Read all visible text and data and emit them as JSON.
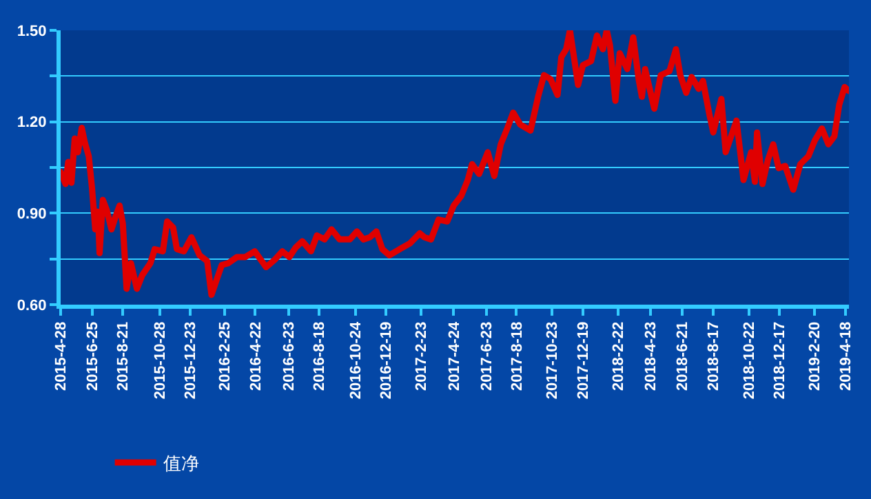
{
  "chart_data": {
    "type": "line",
    "series": [
      {
        "name": "值净",
        "color": "#e00000",
        "x": [
          "2015-04-28",
          "2015-05-07",
          "2015-05-12",
          "2015-05-18",
          "2015-05-24",
          "2015-05-30",
          "2015-06-06",
          "2015-06-12",
          "2015-06-19",
          "2015-06-25",
          "2015-07-01",
          "2015-07-06",
          "2015-07-09",
          "2015-07-15",
          "2015-07-22",
          "2015-07-31",
          "2015-08-07",
          "2015-08-15",
          "2015-08-21",
          "2015-08-28",
          "2015-09-05",
          "2015-09-16",
          "2015-09-26",
          "2015-10-11",
          "2015-10-19",
          "2015-11-03",
          "2015-11-11",
          "2015-11-22",
          "2015-11-29",
          "2015-12-12",
          "2015-12-26",
          "2016-01-10",
          "2016-01-24",
          "2016-02-01",
          "2016-02-11",
          "2016-02-20",
          "2016-03-03",
          "2016-03-19",
          "2016-04-03",
          "2016-04-21",
          "2016-05-12",
          "2016-05-29",
          "2016-06-11",
          "2016-06-24",
          "2016-07-06",
          "2016-07-18",
          "2016-08-03",
          "2016-08-14",
          "2016-08-28",
          "2016-09-10",
          "2016-09-25",
          "2016-10-14",
          "2016-10-27",
          "2016-11-08",
          "2016-11-20",
          "2016-12-02",
          "2016-12-13",
          "2016-12-26",
          "2017-01-14",
          "2017-02-02",
          "2017-02-20",
          "2017-03-01",
          "2017-03-13",
          "2017-03-27",
          "2017-04-12",
          "2017-04-24",
          "2017-05-08",
          "2017-05-20",
          "2017-05-28",
          "2017-06-10",
          "2017-06-26",
          "2017-07-08",
          "2017-07-20",
          "2017-08-01",
          "2017-08-12",
          "2017-08-25",
          "2017-09-13",
          "2017-09-27",
          "2017-10-08",
          "2017-10-20",
          "2017-11-02",
          "2017-11-09",
          "2017-11-18",
          "2017-11-25",
          "2017-12-10",
          "2017-12-19",
          "2018-01-03",
          "2018-01-14",
          "2018-01-25",
          "2018-02-01",
          "2018-02-07",
          "2018-02-17",
          "2018-02-25",
          "2018-03-11",
          "2018-03-22",
          "2018-04-01",
          "2018-04-07",
          "2018-04-13",
          "2018-04-30",
          "2018-05-12",
          "2018-05-28",
          "2018-06-09",
          "2018-06-17",
          "2018-06-28",
          "2018-07-08",
          "2018-07-21",
          "2018-07-29",
          "2018-08-10",
          "2018-08-17",
          "2018-09-01",
          "2018-09-09",
          "2018-09-29",
          "2018-10-12",
          "2018-10-26",
          "2018-11-02",
          "2018-11-06",
          "2018-11-16",
          "2018-11-26",
          "2018-12-06",
          "2018-12-16",
          "2018-12-28",
          "2019-01-12",
          "2019-01-25",
          "2019-02-09",
          "2019-02-21",
          "2019-03-06",
          "2019-03-18",
          "2019-03-29",
          "2019-04-07",
          "2019-04-17",
          "2019-04-25"
        ],
        "values": [
          1.035,
          0.996,
          1.068,
          1.0,
          1.145,
          1.1,
          1.18,
          1.13,
          1.087,
          0.983,
          0.847,
          0.905,
          0.769,
          0.944,
          0.912,
          0.847,
          0.886,
          0.925,
          0.866,
          0.652,
          0.736,
          0.652,
          0.697,
          0.736,
          0.782,
          0.775,
          0.873,
          0.853,
          0.782,
          0.775,
          0.821,
          0.762,
          0.743,
          0.632,
          0.684,
          0.73,
          0.736,
          0.756,
          0.756,
          0.775,
          0.723,
          0.749,
          0.775,
          0.756,
          0.788,
          0.808,
          0.775,
          0.827,
          0.814,
          0.847,
          0.814,
          0.814,
          0.84,
          0.814,
          0.821,
          0.84,
          0.782,
          0.762,
          0.782,
          0.801,
          0.834,
          0.821,
          0.814,
          0.879,
          0.873,
          0.925,
          0.957,
          1.009,
          1.061,
          1.029,
          1.1,
          1.022,
          1.126,
          1.178,
          1.23,
          1.191,
          1.171,
          1.282,
          1.353,
          1.34,
          1.288,
          1.412,
          1.438,
          1.5,
          1.321,
          1.386,
          1.399,
          1.483,
          1.438,
          1.5,
          1.451,
          1.269,
          1.425,
          1.373,
          1.477,
          1.34,
          1.282,
          1.373,
          1.243,
          1.353,
          1.366,
          1.438,
          1.353,
          1.295,
          1.347,
          1.308,
          1.334,
          1.223,
          1.165,
          1.275,
          1.1,
          1.204,
          1.009,
          1.1,
          1.003,
          1.165,
          0.996,
          1.074,
          1.126,
          1.048,
          1.055,
          0.977,
          1.061,
          1.087,
          1.139,
          1.178,
          1.126,
          1.152,
          1.256,
          1.314,
          1.301
        ]
      }
    ],
    "xlim": [
      "2015-04-28",
      "2019-04-25"
    ],
    "xticks": [
      {
        "value": "2015-04-28",
        "label": "2015-4-28"
      },
      {
        "value": "2015-06-25",
        "label": "2015-6-25"
      },
      {
        "value": "2015-08-21",
        "label": "2015-8-21"
      },
      {
        "value": "2015-10-28",
        "label": "2015-10-28"
      },
      {
        "value": "2015-12-23",
        "label": "2015-12-23"
      },
      {
        "value": "2016-02-25",
        "label": "2016-2-25"
      },
      {
        "value": "2016-04-22",
        "label": "2016-4-22"
      },
      {
        "value": "2016-06-23",
        "label": "2016-6-23"
      },
      {
        "value": "2016-08-18",
        "label": "2016-8-18"
      },
      {
        "value": "2016-10-24",
        "label": "2016-10-24"
      },
      {
        "value": "2016-12-19",
        "label": "2016-12-19"
      },
      {
        "value": "2017-02-23",
        "label": "2017-2-23"
      },
      {
        "value": "2017-04-24",
        "label": "2017-4-24"
      },
      {
        "value": "2017-06-23",
        "label": "2017-6-23"
      },
      {
        "value": "2017-08-18",
        "label": "2017-8-18"
      },
      {
        "value": "2017-10-23",
        "label": "2017-10-23"
      },
      {
        "value": "2017-12-19",
        "label": "2017-12-19"
      },
      {
        "value": "2018-02-22",
        "label": "2018-2-22"
      },
      {
        "value": "2018-04-23",
        "label": "2018-4-23"
      },
      {
        "value": "2018-06-21",
        "label": "2018-6-21"
      },
      {
        "value": "2018-08-17",
        "label": "2018-8-17"
      },
      {
        "value": "2018-10-22",
        "label": "2018-10-22"
      },
      {
        "value": "2018-12-17",
        "label": "2018-12-17"
      },
      {
        "value": "2019-02-20",
        "label": "2019-2-20"
      },
      {
        "value": "2019-04-18",
        "label": "2019-4-18"
      }
    ],
    "ylim": [
      0.6,
      1.5
    ],
    "yticks": [
      {
        "value": 0.6,
        "label": "0.60"
      },
      {
        "value": 0.75,
        "label": null
      },
      {
        "value": 0.9,
        "label": "0.90"
      },
      {
        "value": 1.05,
        "label": null
      },
      {
        "value": 1.2,
        "label": "1.20"
      },
      {
        "value": 1.35,
        "label": null
      },
      {
        "value": 1.5,
        "label": "1.50"
      }
    ],
    "grid": "y",
    "legend": "bottom left",
    "marker": "none",
    "line_style": "solid"
  }
}
